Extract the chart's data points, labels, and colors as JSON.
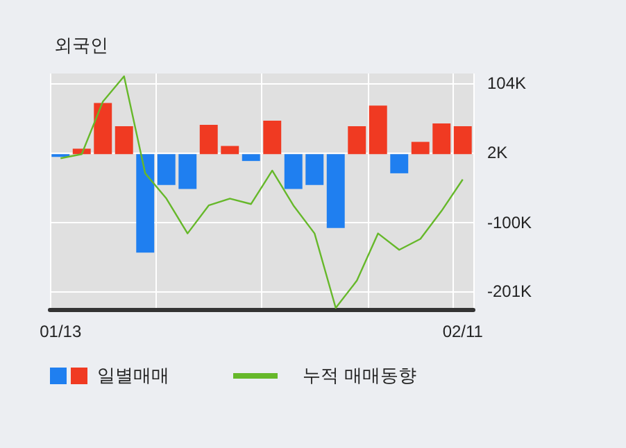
{
  "chart_data": {
    "type": "bar",
    "title": "외국인",
    "categories": [
      "01/13",
      null,
      null,
      null,
      null,
      null,
      null,
      null,
      null,
      null,
      null,
      null,
      null,
      null,
      null,
      null,
      null,
      null,
      null,
      "02/11"
    ],
    "series": [
      {
        "name": "일별매매",
        "colors": [
          "#1f7ff0",
          "#f03a22",
          "#f03a22",
          "#f03a22",
          "#1f7ff0",
          "#1f7ff0",
          "#1f7ff0",
          "#f03a22",
          "#f03a22",
          "#1f7ff0",
          "#f03a22",
          "#1f7ff0",
          "#1f7ff0",
          "#1f7ff0",
          "#f03a22",
          "#f03a22",
          "#1f7ff0",
          "#f03a22",
          "#f03a22",
          "#f03a22"
        ],
        "values": [
          -4,
          8,
          75,
          41,
          -144,
          -45,
          -51,
          43,
          12,
          -10,
          49,
          -51,
          -45,
          -108,
          41,
          71,
          -28,
          18,
          45,
          41
        ]
      },
      {
        "type": "line",
        "name": "누적 매매동향",
        "color": "#66b82a",
        "values": [
          -6,
          0,
          77,
          114,
          -28,
          -65,
          -116,
          -75,
          -65,
          -73,
          -24,
          -75,
          -116,
          -225,
          -185,
          -116,
          -140,
          -124,
          -83,
          -37
        ]
      }
    ],
    "ylim": [
      -227,
      118
    ],
    "yticks": [
      {
        "value": 104,
        "label": "104K"
      },
      {
        "value": 2,
        "label": "2K"
      },
      {
        "value": -100,
        "label": "-100K"
      },
      {
        "value": -201,
        "label": "-201K"
      }
    ],
    "grid": true,
    "legend": "bottom",
    "marker": "none"
  }
}
